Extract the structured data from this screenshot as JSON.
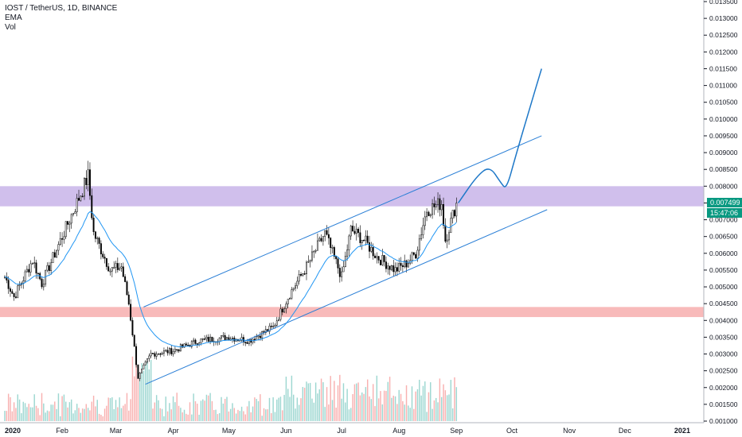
{
  "header": {
    "symbol": "IOST / TetherUS, 1D, BINANCE",
    "ema_label": "EMA",
    "vol_label": "Vol"
  },
  "badges": {
    "last_price": "0.007499",
    "countdown": "15:47:06"
  },
  "colors": {
    "up_candle": "#26a69a",
    "down_candle": "#ef5350",
    "ema_line": "#2196f3",
    "channel_line": "#2a7fd6",
    "forecast_line": "#1e78c8",
    "resistance_zone": "#cbb8ea",
    "support_zone": "#f7b3b3",
    "price_badge": "#089981"
  },
  "chart_data": {
    "type": "candlestick",
    "y_axis": {
      "scale": "linear",
      "min": 0.001,
      "max": 0.0135,
      "ticks": [
        "0.013500",
        "0.013000",
        "0.012500",
        "0.012000",
        "0.011500",
        "0.011000",
        "0.010500",
        "0.010000",
        "0.009500",
        "0.009000",
        "0.008500",
        "0.008000",
        "0.007500",
        "0.007000",
        "0.006500",
        "0.006000",
        "0.005500",
        "0.005000",
        "0.004500",
        "0.004000",
        "0.003500",
        "0.003000",
        "0.002500",
        "0.002000",
        "0.001500",
        "0.001000"
      ]
    },
    "x_axis": {
      "ticks": [
        "2020",
        "Feb",
        "Mar",
        "Apr",
        "May",
        "Jun",
        "Jul",
        "Aug",
        "Sep",
        "Oct",
        "Nov",
        "Dec",
        "2021"
      ],
      "tick_dates": [
        "2020-01-01",
        "2020-02-01",
        "2020-03-01",
        "2020-04-01",
        "2020-05-01",
        "2020-06-01",
        "2020-07-01",
        "2020-08-01",
        "2020-09-01",
        "2020-10-01",
        "2020-11-01",
        "2020-12-01",
        "2021-01-01"
      ]
    },
    "zones": [
      {
        "name": "resistance",
        "from": 0.0074,
        "to": 0.008
      },
      {
        "name": "support",
        "from": 0.0041,
        "to": 0.0044
      }
    ],
    "channel": {
      "upper": [
        {
          "date": "2020-03-16",
          "price": 0.0044
        },
        {
          "date": "2020-10-17",
          "price": 0.0095
        }
      ],
      "lower": [
        {
          "date": "2020-03-17",
          "price": 0.0021
        },
        {
          "date": "2020-10-20",
          "price": 0.0073
        }
      ]
    },
    "forecast_path": [
      {
        "date": "2020-09-02",
        "price": 0.0075
      },
      {
        "date": "2020-09-12",
        "price": 0.0083
      },
      {
        "date": "2020-09-19",
        "price": 0.0086
      },
      {
        "date": "2020-09-25",
        "price": 0.0081
      },
      {
        "date": "2020-09-28",
        "price": 0.0079
      },
      {
        "date": "2020-10-03",
        "price": 0.0089
      },
      {
        "date": "2020-10-11",
        "price": 0.0104
      },
      {
        "date": "2020-10-17",
        "price": 0.0115
      }
    ],
    "price_waypoints": [
      {
        "date": "2020-01-01",
        "price": 0.0053
      },
      {
        "date": "2020-01-06",
        "price": 0.0047
      },
      {
        "date": "2020-01-16",
        "price": 0.0058
      },
      {
        "date": "2020-01-21",
        "price": 0.0051
      },
      {
        "date": "2020-02-01",
        "price": 0.0065
      },
      {
        "date": "2020-02-12",
        "price": 0.0079
      },
      {
        "date": "2020-02-15",
        "price": 0.0083
      },
      {
        "date": "2020-02-18",
        "price": 0.0066
      },
      {
        "date": "2020-02-27",
        "price": 0.0055
      },
      {
        "date": "2020-03-04",
        "price": 0.0056
      },
      {
        "date": "2020-03-08",
        "price": 0.0045
      },
      {
        "date": "2020-03-13",
        "price": 0.0023
      },
      {
        "date": "2020-03-20",
        "price": 0.003
      },
      {
        "date": "2020-04-01",
        "price": 0.0031
      },
      {
        "date": "2020-04-15",
        "price": 0.0034
      },
      {
        "date": "2020-05-01",
        "price": 0.0035
      },
      {
        "date": "2020-05-12",
        "price": 0.0034
      },
      {
        "date": "2020-05-25",
        "price": 0.0038
      },
      {
        "date": "2020-06-03",
        "price": 0.0048
      },
      {
        "date": "2020-06-12",
        "price": 0.0056
      },
      {
        "date": "2020-06-22",
        "price": 0.0066
      },
      {
        "date": "2020-06-26",
        "price": 0.006
      },
      {
        "date": "2020-07-01",
        "price": 0.0053
      },
      {
        "date": "2020-07-06",
        "price": 0.0067
      },
      {
        "date": "2020-07-13",
        "price": 0.0064
      },
      {
        "date": "2020-07-20",
        "price": 0.0059
      },
      {
        "date": "2020-07-30",
        "price": 0.0055
      },
      {
        "date": "2020-08-05",
        "price": 0.0057
      },
      {
        "date": "2020-08-10",
        "price": 0.006
      },
      {
        "date": "2020-08-16",
        "price": 0.0073
      },
      {
        "date": "2020-08-24",
        "price": 0.0075
      },
      {
        "date": "2020-08-26",
        "price": 0.0064
      },
      {
        "date": "2020-09-01",
        "price": 0.0075
      }
    ],
    "last_price": 0.007499,
    "volume": "shown as histogram bars at chart bottom",
    "grid": false
  }
}
